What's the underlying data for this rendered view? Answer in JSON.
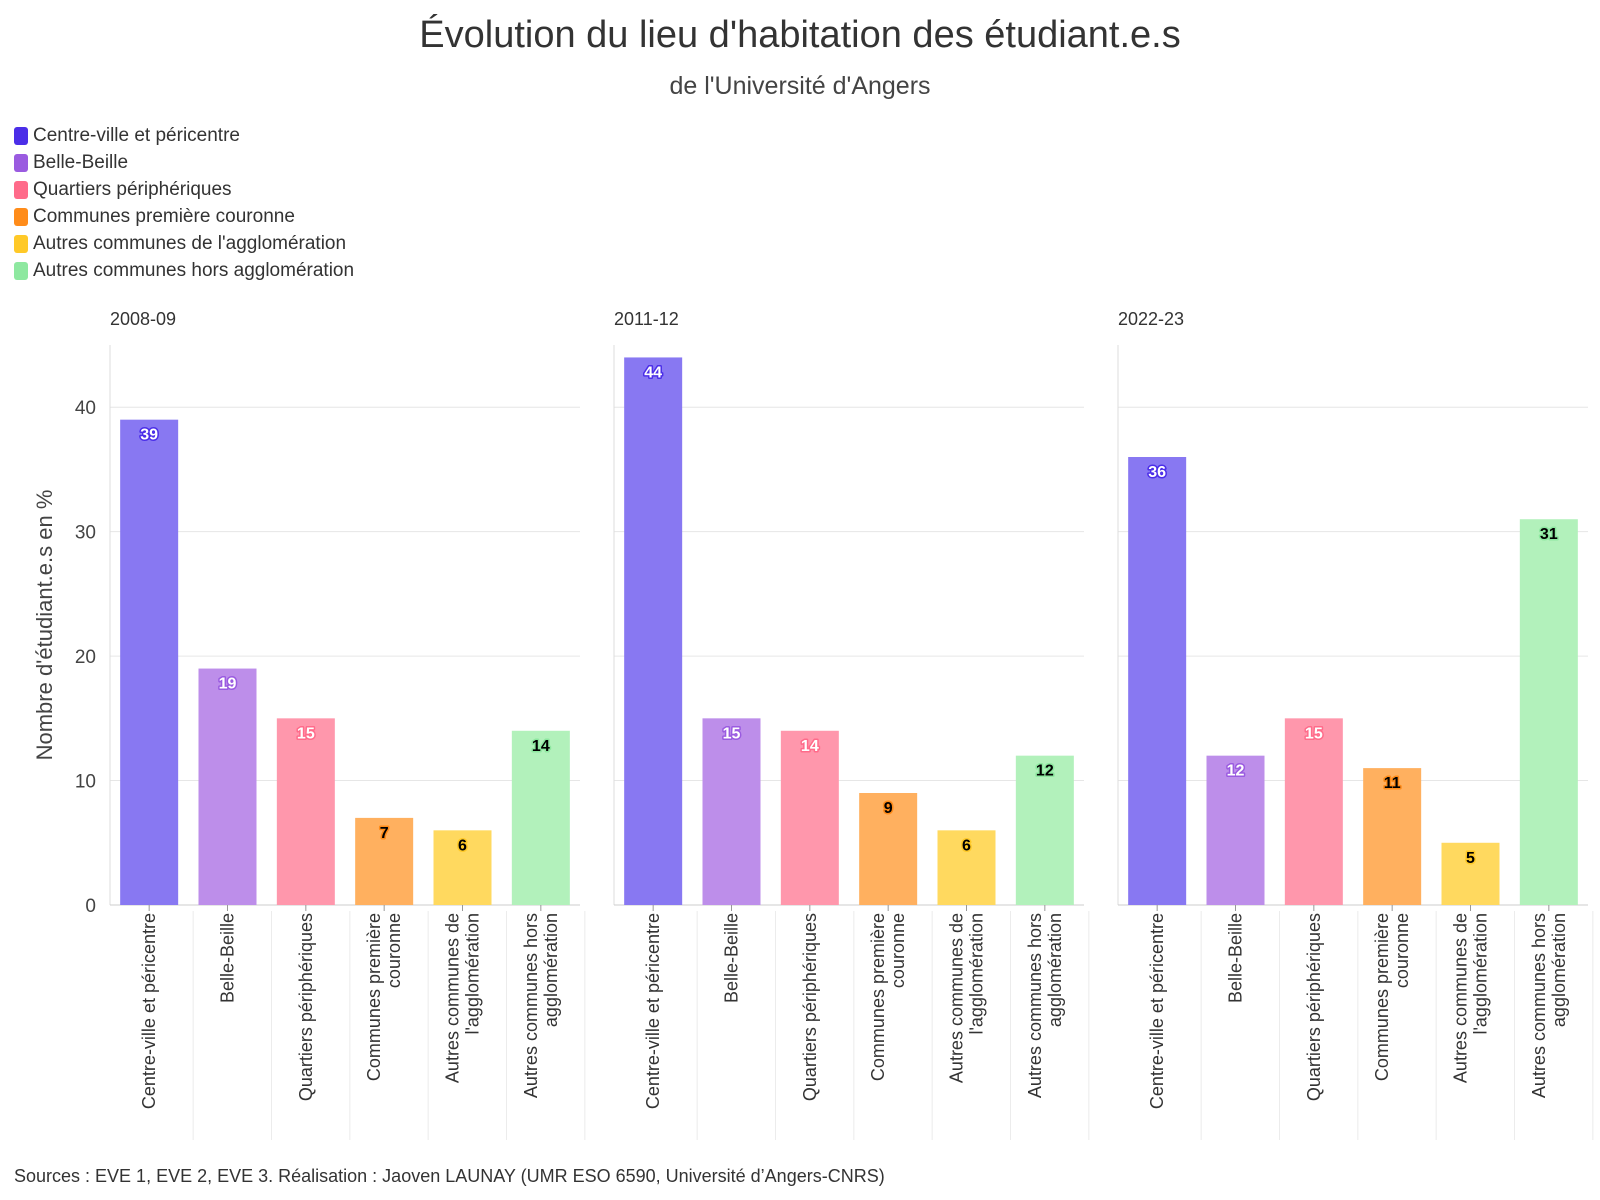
{
  "title": "Évolution du lieu d'habitation des étudiant.e.s",
  "subtitle": "de l'Université d'Angers",
  "source": "Sources : EVE 1, EVE 2, EVE 3. Réalisation : Jaoven LAUNAY (UMR ESO 6590, Université d’Angers-CNRS)",
  "legend": [
    {
      "label": "Centre-ville et péricentre",
      "color": "#4b2ee8"
    },
    {
      "label": "Belle-Beille",
      "color": "#9a5be0"
    },
    {
      "label": "Quartiers périphériques",
      "color": "#ff6b8a"
    },
    {
      "label": "Communes première couronne",
      "color": "#ff8c1a"
    },
    {
      "label": "Autres communes de l'agglomération",
      "color": "#ffc928"
    },
    {
      "label": "Autres communes hors agglomération",
      "color": "#8ee8a0"
    }
  ],
  "chart_data": {
    "type": "bar",
    "ylabel": "Nombre d'étudiant.e.s en %",
    "ylim": [
      0,
      45
    ],
    "yticks": [
      0,
      10,
      20,
      30,
      40
    ],
    "categories": [
      "Centre-ville et péricentre",
      "Belle-Beille",
      "Quartiers périphériques",
      "Communes première couronne",
      "Autres communes de l'agglomération",
      "Autres communes hors agglomération"
    ],
    "category_label_lines": [
      [
        "Centre-ville et péricentre"
      ],
      [
        "Belle-Beille"
      ],
      [
        "Quartiers périphériques"
      ],
      [
        "Communes première",
        "couronne"
      ],
      [
        "Autres communes de",
        "l'agglomération"
      ],
      [
        "Autres communes hors",
        "agglomération"
      ]
    ],
    "bar_colors": [
      "#8878f2",
      "#bd8eea",
      "#ff97ac",
      "#ffb05f",
      "#ffd95f",
      "#b2f1bb"
    ],
    "label_text_colors": [
      "#ffffff",
      "#ffffff",
      "#ffffff",
      "#000000",
      "#000000",
      "#000000"
    ],
    "label_stroke_colors": [
      "#4b2ee8",
      "#9a5be0",
      "#ff6b8a",
      "#ff8c1a",
      "#ffc928",
      "#8ee8a0"
    ],
    "panels": [
      {
        "name": "2008-09",
        "values": [
          39,
          19,
          15,
          7,
          6,
          14
        ]
      },
      {
        "name": "2011-12",
        "values": [
          44,
          15,
          14,
          9,
          6,
          12
        ]
      },
      {
        "name": "2022-23",
        "values": [
          36,
          12,
          15,
          11,
          5,
          31
        ]
      }
    ]
  }
}
